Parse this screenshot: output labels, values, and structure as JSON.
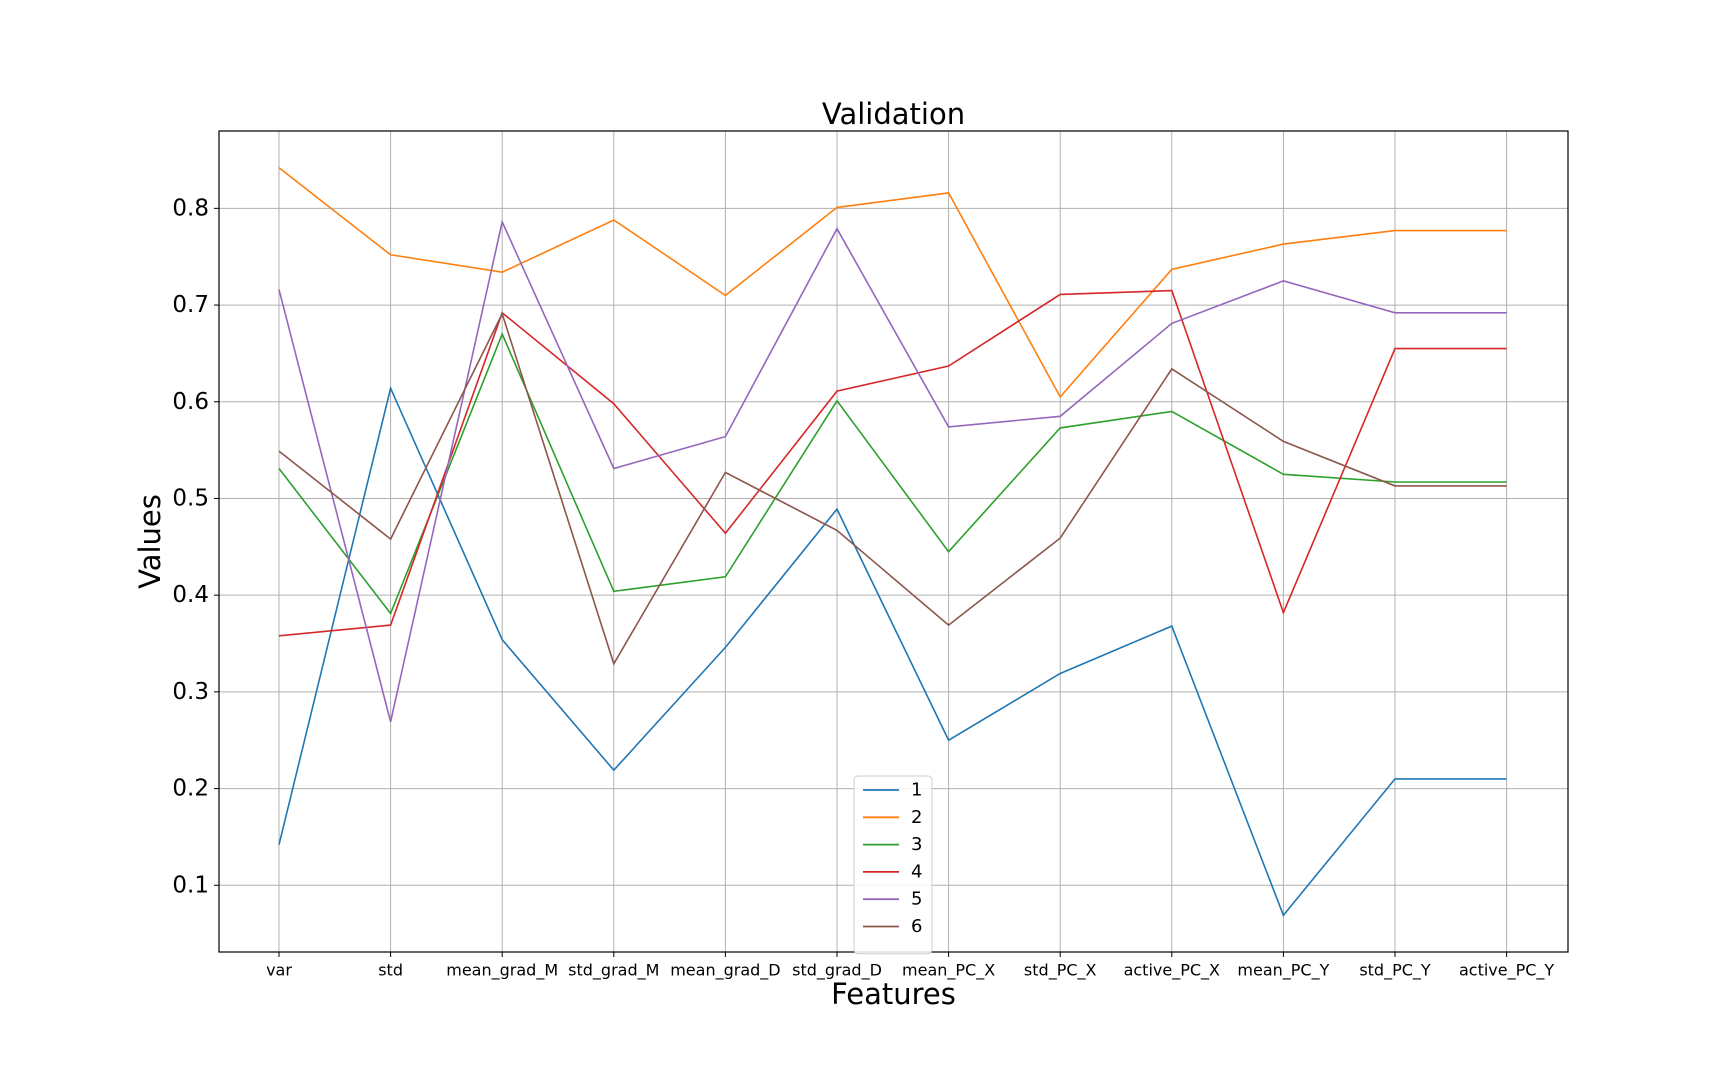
{
  "chart_data": {
    "type": "line",
    "title": "Validation",
    "xlabel": "Features",
    "ylabel": "Values",
    "categories": [
      "var",
      "std",
      "mean_grad_M",
      "std_grad_M",
      "mean_grad_D",
      "std_grad_D",
      "mean_PC_X",
      "std_PC_X",
      "active_PC_X",
      "mean_PC_Y",
      "std_PC_Y",
      "active_PC_Y"
    ],
    "ylim": [
      0.031,
      0.88
    ],
    "yticks": [
      0.1,
      0.2,
      0.3,
      0.4,
      0.5,
      0.6,
      0.7,
      0.8
    ],
    "ytick_labels": [
      "0.1",
      "0.2",
      "0.3",
      "0.4",
      "0.5",
      "0.6",
      "0.7",
      "0.8"
    ],
    "grid": true,
    "legend_position": "bottom-center",
    "series": [
      {
        "name": "1",
        "color": "#1f77b4",
        "values": [
          0.142,
          0.614,
          0.354,
          0.219,
          0.346,
          0.489,
          0.25,
          0.319,
          0.368,
          0.069,
          0.21,
          0.21
        ]
      },
      {
        "name": "2",
        "color": "#ff7f0e",
        "values": [
          0.842,
          0.752,
          0.734,
          0.788,
          0.71,
          0.801,
          0.816,
          0.605,
          0.737,
          0.763,
          0.777,
          0.777
        ]
      },
      {
        "name": "3",
        "color": "#2ca02c",
        "values": [
          0.531,
          0.381,
          0.67,
          0.404,
          0.419,
          0.601,
          0.445,
          0.573,
          0.59,
          0.525,
          0.517,
          0.517
        ]
      },
      {
        "name": "4",
        "color": "#d62728",
        "values": [
          0.358,
          0.369,
          0.692,
          0.598,
          0.464,
          0.611,
          0.637,
          0.711,
          0.715,
          0.382,
          0.655,
          0.655
        ]
      },
      {
        "name": "5",
        "color": "#9467bd",
        "values": [
          0.716,
          0.269,
          0.786,
          0.531,
          0.564,
          0.779,
          0.574,
          0.585,
          0.681,
          0.725,
          0.692,
          0.692
        ]
      },
      {
        "name": "6",
        "color": "#8c564b",
        "values": [
          0.549,
          0.458,
          0.691,
          0.329,
          0.527,
          0.467,
          0.369,
          0.459,
          0.634,
          0.559,
          0.513,
          0.513
        ]
      }
    ]
  }
}
